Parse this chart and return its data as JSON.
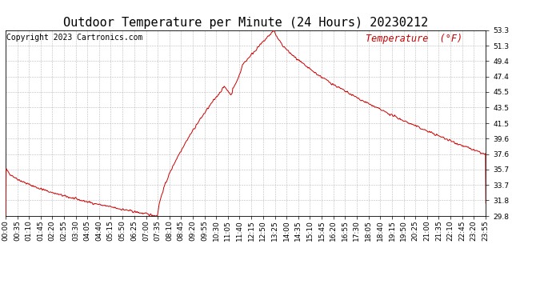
{
  "title": "Outdoor Temperature per Minute (24 Hours) 20230212",
  "copyright_text": "Copyright 2023 Cartronics.com",
  "legend_text": "Temperature  (°F)",
  "line_color": "#cc0000",
  "background_color": "#ffffff",
  "grid_color": "#aaaaaa",
  "text_color": "#000000",
  "legend_color": "#cc0000",
  "ylim": [
    29.8,
    53.3
  ],
  "yticks": [
    29.8,
    31.8,
    33.7,
    35.7,
    37.6,
    39.6,
    41.5,
    43.5,
    45.5,
    47.4,
    49.4,
    51.3,
    53.3
  ],
  "x_tick_labels": [
    "00:00",
    "00:35",
    "01:10",
    "01:45",
    "02:20",
    "02:55",
    "03:30",
    "04:05",
    "04:40",
    "05:15",
    "05:50",
    "06:25",
    "07:00",
    "07:35",
    "08:10",
    "08:45",
    "09:20",
    "09:55",
    "10:30",
    "11:05",
    "11:40",
    "12:15",
    "12:50",
    "13:25",
    "14:00",
    "14:35",
    "15:10",
    "15:45",
    "16:20",
    "16:55",
    "17:30",
    "18:05",
    "18:40",
    "19:15",
    "19:50",
    "20:25",
    "21:00",
    "21:35",
    "22:10",
    "22:45",
    "23:20",
    "23:55"
  ],
  "title_fontsize": 11,
  "axis_fontsize": 6.5,
  "copyright_fontsize": 7,
  "legend_fontsize": 8.5
}
